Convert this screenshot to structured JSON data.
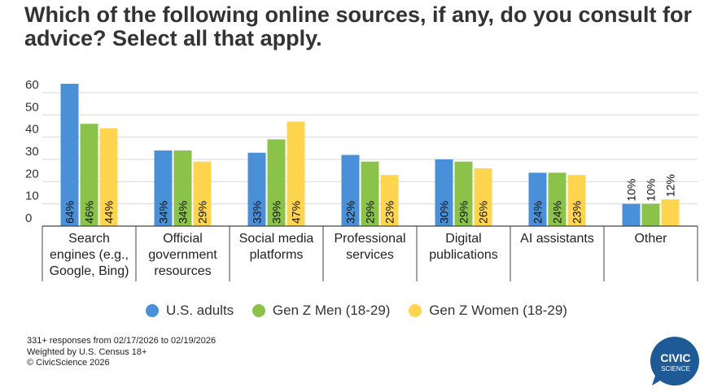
{
  "title": "Which of the following online sources, if any, do you consult for advice? Select all that apply.",
  "chart_data": {
    "type": "bar",
    "title": "Which of the following online sources, if any, do you consult for advice? Select all that apply.",
    "categories": [
      [
        "Search",
        "engines (e.g.,",
        "Google, Bing)"
      ],
      [
        "Official",
        "government",
        "resources"
      ],
      [
        "Social media",
        "platforms"
      ],
      [
        "Professional",
        "services"
      ],
      [
        "Digital",
        "publications"
      ],
      [
        "AI assistants"
      ],
      [
        "Other"
      ]
    ],
    "series": [
      {
        "name": "U.S. adults",
        "color": "#4a90d9",
        "values": [
          64,
          34,
          33,
          32,
          30,
          24,
          10
        ],
        "labels": [
          "64%",
          "34%",
          "33%",
          "32%",
          "30%",
          "24%",
          "10%"
        ]
      },
      {
        "name": "Gen Z Men (18-29)",
        "color": "#8bc34a",
        "values": [
          46,
          34,
          39,
          29,
          29,
          24,
          10
        ],
        "labels": [
          "46%",
          "34%",
          "39%",
          "29%",
          "29%",
          "24%",
          "10%"
        ]
      },
      {
        "name": "Gen Z Women (18-29)",
        "color": "#ffd54f",
        "values": [
          44,
          29,
          47,
          23,
          26,
          23,
          12
        ],
        "labels": [
          "44%",
          "29%",
          "47%",
          "23%",
          "26%",
          "23%",
          "12%"
        ]
      }
    ],
    "yticks": [
      0,
      10,
      20,
      30,
      40,
      50,
      60
    ],
    "ylim": [
      0,
      64
    ],
    "xlabel": "",
    "ylabel": "",
    "grid": true,
    "legend": "bottom-center"
  },
  "footnote": {
    "line1": "331+ responses from 02/17/2026 to 02/19/2026",
    "line2": "Weighted by U.S. Census 18+",
    "line3": "© CivicScience 2026"
  },
  "logo": {
    "line1": "CIVIC",
    "line2": "SCIENCE",
    "color": "#1d5a96"
  }
}
